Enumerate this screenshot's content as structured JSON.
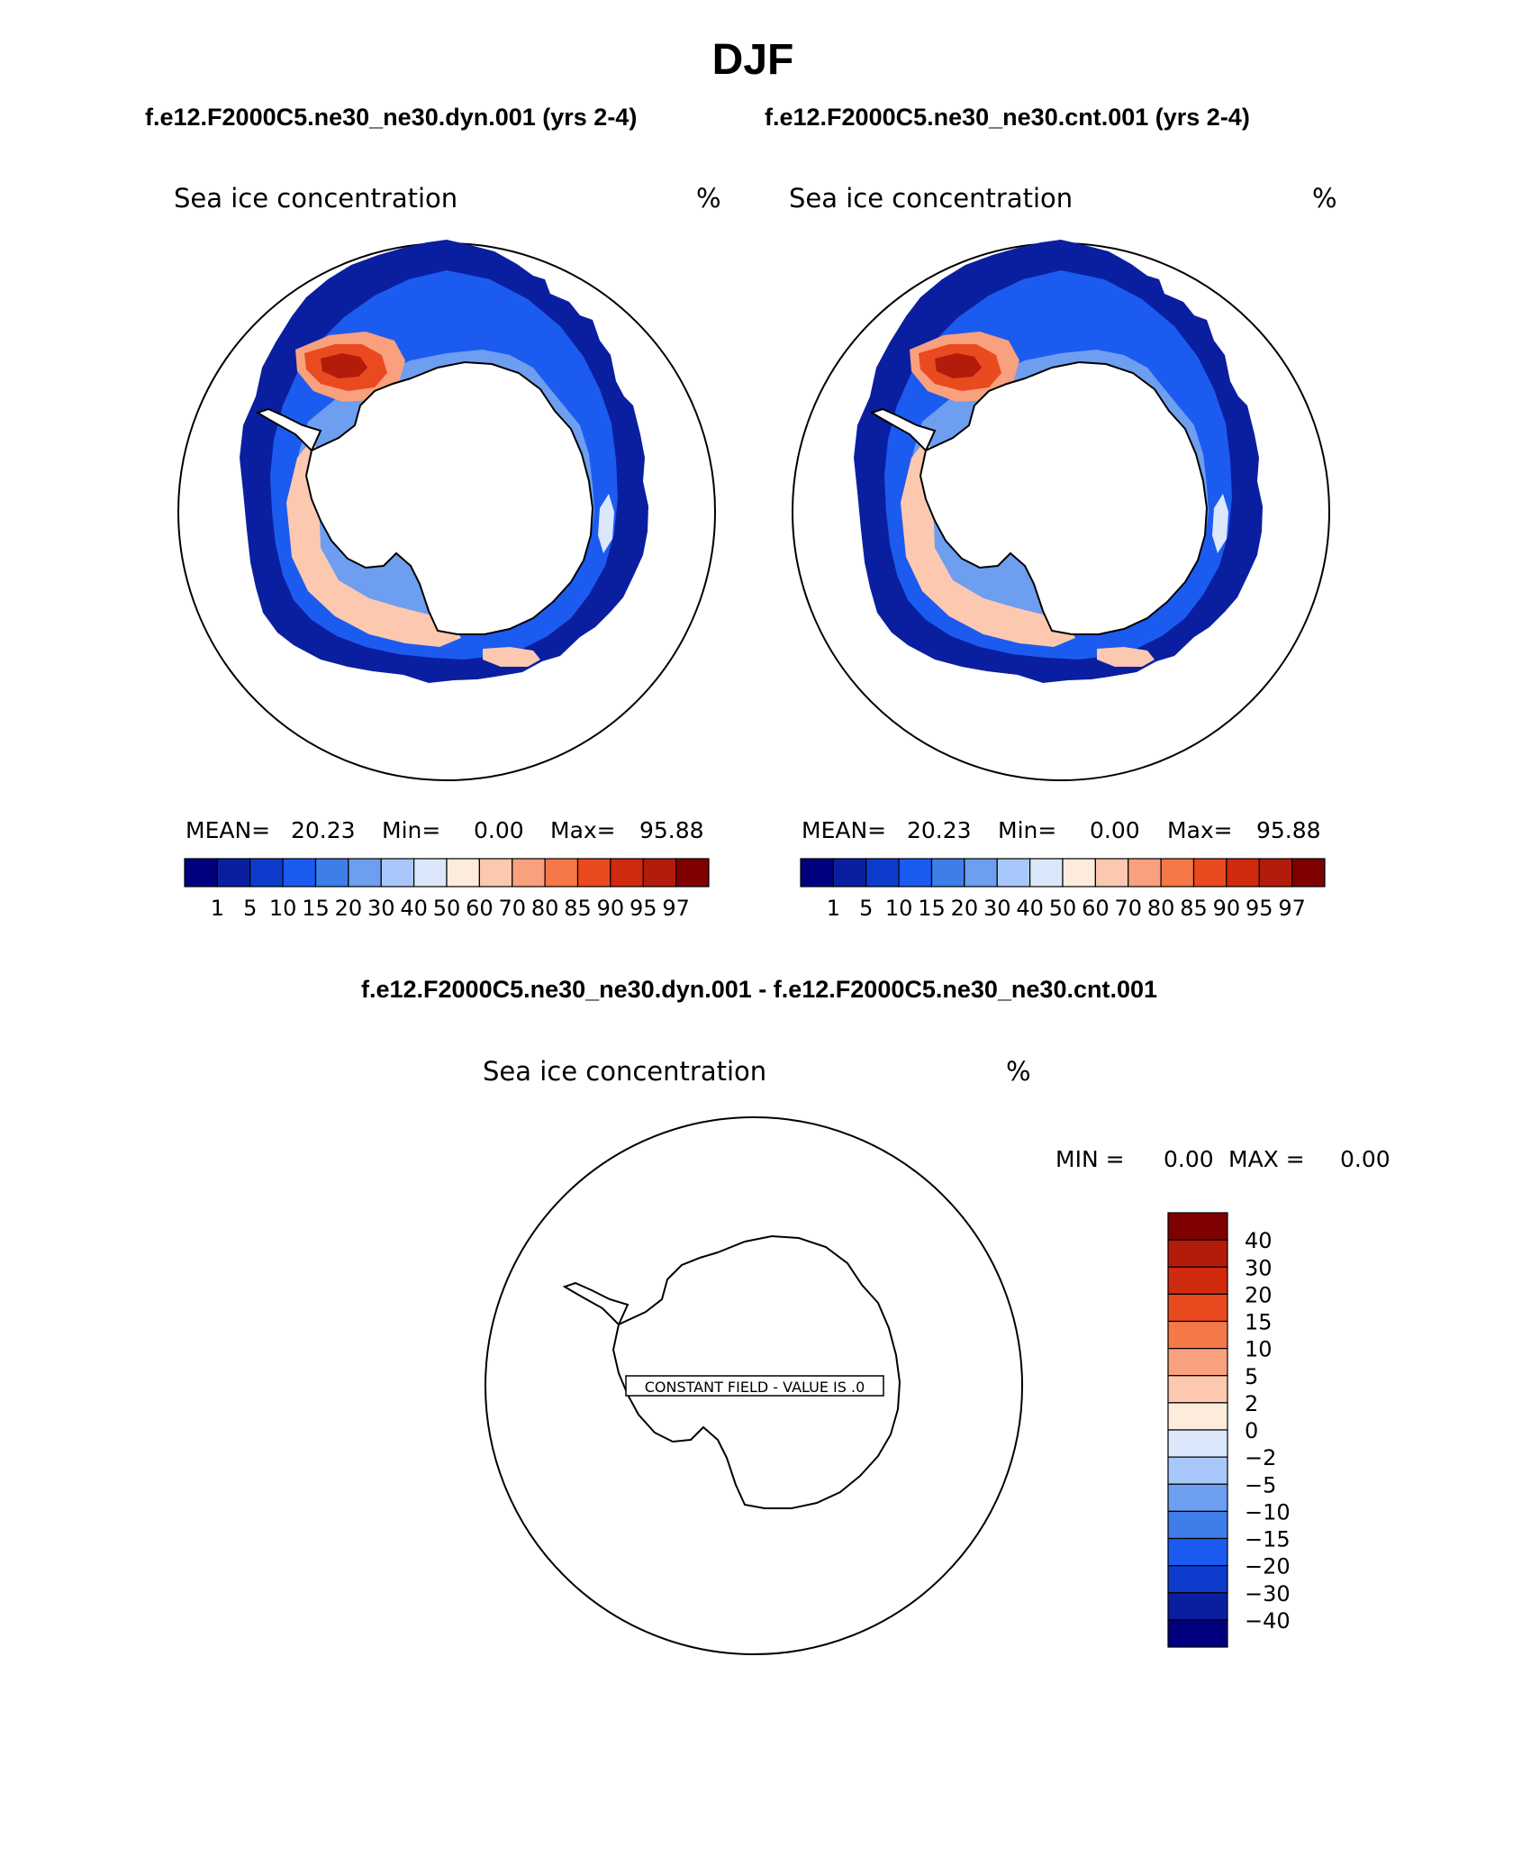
{
  "figure": {
    "season": "DJF",
    "case_titles": [
      "f.e12.F2000C5.ne30_ne30.dyn.001 (yrs 2-4)",
      "f.e12.F2000C5.ne30_ne30.cnt.001 (yrs 2-4)"
    ],
    "diff_title": "f.e12.F2000C5.ne30_ne30.dyn.001 - f.e12.F2000C5.ne30_ne30.cnt.001"
  },
  "panels": [
    {
      "variable": "Sea ice concentration",
      "units": "%",
      "stats": {
        "mean_label": "MEAN=",
        "mean": "20.23",
        "min_label": "Min=",
        "min": "0.00",
        "max_label": "Max=",
        "max": "95.88"
      }
    },
    {
      "variable": "Sea ice concentration",
      "units": "%",
      "stats": {
        "mean_label": "MEAN=",
        "mean": "20.23",
        "min_label": "Min=",
        "min": "0.00",
        "max_label": "Max=",
        "max": "95.88"
      }
    }
  ],
  "diff_panel": {
    "variable": "Sea ice concentration",
    "units": "%",
    "min_label": "MIN =",
    "min": "0.00",
    "max_label": "MAX =",
    "max": "0.00",
    "notice": "CONSTANT FIELD - VALUE IS .0"
  },
  "chart_data": [
    {
      "type": "heatmap",
      "projection": "south-polar-stereographic",
      "title": "Sea ice concentration",
      "units": "%",
      "mean": 20.23,
      "min": 0.0,
      "max": 95.88,
      "colorbar": {
        "orientation": "horizontal",
        "levels": [
          "1",
          "5",
          "10",
          "15",
          "20",
          "30",
          "40",
          "50",
          "60",
          "70",
          "80",
          "85",
          "90",
          "95",
          "97"
        ],
        "colors": [
          "#00007f",
          "#0a1fa0",
          "#0d3ccc",
          "#1c5bf0",
          "#3f7de8",
          "#6d9ef0",
          "#a8c8fb",
          "#dbe8fb",
          "#fdecdb",
          "#fdc8b0",
          "#f9a07f",
          "#f47848",
          "#e94a1f",
          "#d02a0f",
          "#b31b0b",
          "#7f0000"
        ]
      }
    },
    {
      "type": "heatmap",
      "projection": "south-polar-stereographic",
      "title": "Sea ice concentration",
      "units": "%",
      "mean": 20.23,
      "min": 0.0,
      "max": 95.88,
      "colorbar": {
        "orientation": "horizontal",
        "levels": [
          "1",
          "5",
          "10",
          "15",
          "20",
          "30",
          "40",
          "50",
          "60",
          "70",
          "80",
          "85",
          "90",
          "95",
          "97"
        ],
        "colors": [
          "#00007f",
          "#0a1fa0",
          "#0d3ccc",
          "#1c5bf0",
          "#3f7de8",
          "#6d9ef0",
          "#a8c8fb",
          "#dbe8fb",
          "#fdecdb",
          "#fdc8b0",
          "#f9a07f",
          "#f47848",
          "#e94a1f",
          "#d02a0f",
          "#b31b0b",
          "#7f0000"
        ]
      }
    },
    {
      "type": "heatmap",
      "projection": "south-polar-stereographic",
      "title": "Sea ice concentration",
      "units": "%",
      "min": 0.0,
      "max": 0.0,
      "colorbar": {
        "orientation": "vertical",
        "levels_top_to_bottom": [
          "40",
          "30",
          "20",
          "15",
          "10",
          "5",
          "2",
          "0",
          "−2",
          "−5",
          "−10",
          "−15",
          "−20",
          "−30",
          "−40"
        ],
        "colors_top_to_bottom": [
          "#7f0000",
          "#b31b0b",
          "#d02a0f",
          "#e94a1f",
          "#f47848",
          "#f9a07f",
          "#fdc8b0",
          "#fdecdb",
          "#dbe8fb",
          "#a8c8fb",
          "#6d9ef0",
          "#3f7de8",
          "#1c5bf0",
          "#0d3ccc",
          "#0a1fa0",
          "#00007f"
        ]
      }
    }
  ]
}
